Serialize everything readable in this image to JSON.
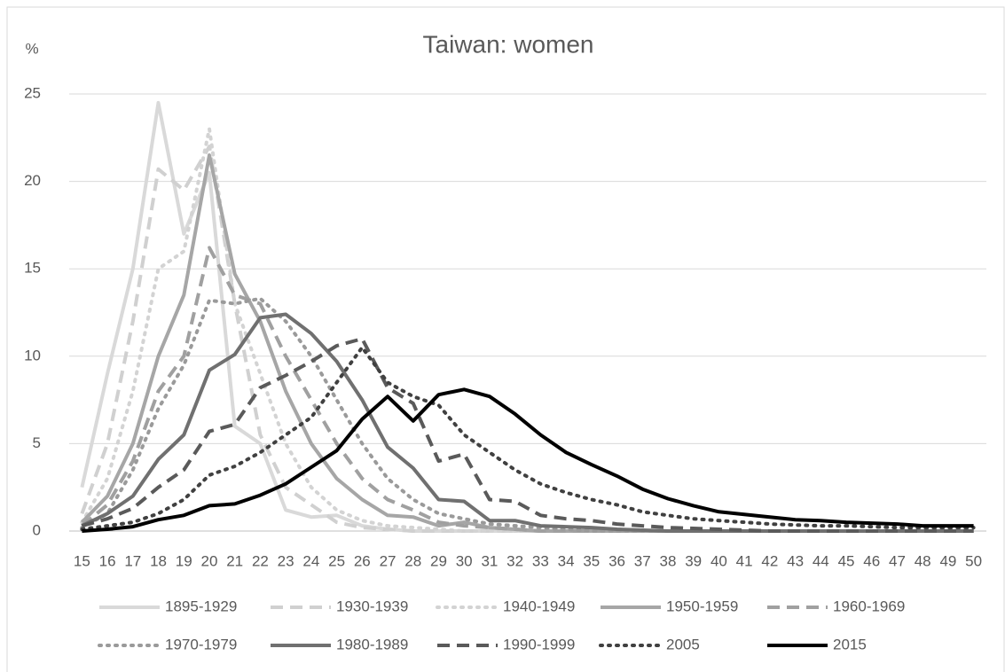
{
  "chart_data": {
    "type": "line",
    "title": "Taiwan: women",
    "y_label": "%",
    "categories": [
      "15",
      "16",
      "17",
      "18",
      "19",
      "20",
      "21",
      "22",
      "23",
      "24",
      "25",
      "26",
      "27",
      "28",
      "29",
      "30",
      "31",
      "32",
      "33",
      "34",
      "35",
      "36",
      "37",
      "38",
      "39",
      "40",
      "41",
      "42",
      "43",
      "44",
      "45",
      "46",
      "47",
      "48",
      "49",
      "50"
    ],
    "ylim": [
      0,
      25
    ],
    "yticks": [
      0,
      5,
      10,
      15,
      20,
      25
    ],
    "grid": true,
    "legend": "bottom",
    "series": [
      {
        "name": "1895-1929",
        "color": "#d9d9d9",
        "dash": "solid",
        "values": [
          2.5,
          9,
          15,
          24.5,
          17,
          20.5,
          6,
          5,
          1.2,
          0.8,
          0.9,
          0.3,
          0.1,
          0,
          0,
          0,
          0,
          0,
          0,
          0,
          0,
          0,
          0,
          0,
          0,
          0,
          0,
          0,
          0,
          0,
          0,
          0,
          0,
          0,
          0,
          0
        ]
      },
      {
        "name": "1930-1939",
        "color": "#d0d0d0",
        "dash": "dashed",
        "values": [
          1,
          5,
          12,
          20.7,
          19.5,
          22,
          13,
          5.5,
          2.5,
          1.5,
          0.5,
          0.2,
          0.1,
          0,
          0,
          0,
          0,
          0,
          0,
          0,
          0,
          0,
          0,
          0,
          0,
          0,
          0,
          0,
          0,
          0,
          0,
          0,
          0,
          0,
          0,
          0
        ]
      },
      {
        "name": "1940-1949",
        "color": "#d3d3d3",
        "dash": "dotted",
        "values": [
          0.5,
          3,
          8,
          15,
          16,
          23,
          13,
          9,
          5,
          2.5,
          1.2,
          0.6,
          0.3,
          0.2,
          0.1,
          0,
          0,
          0,
          0,
          0,
          0,
          0,
          0,
          0,
          0,
          0,
          0,
          0,
          0,
          0,
          0,
          0,
          0,
          0,
          0,
          0
        ]
      },
      {
        "name": "1950-1959",
        "color": "#a6a6a6",
        "dash": "solid",
        "values": [
          0.5,
          2,
          5,
          10,
          13.5,
          21.5,
          14.7,
          12,
          8,
          5,
          3,
          1.8,
          0.9,
          0.8,
          0.3,
          0.5,
          0.2,
          0.1,
          0,
          0,
          0,
          0,
          0,
          0,
          0,
          0,
          0,
          0,
          0,
          0,
          0,
          0,
          0,
          0,
          0,
          0
        ]
      },
      {
        "name": "1960-1969",
        "color": "#a0a0a0",
        "dash": "dashed",
        "values": [
          0.3,
          1.5,
          4,
          8,
          10,
          16.2,
          13.5,
          13,
          10,
          7.5,
          5,
          3,
          1.8,
          1.2,
          0.5,
          0.3,
          0.2,
          0.1,
          0,
          0,
          0,
          0,
          0,
          0,
          0,
          0,
          0,
          0,
          0,
          0,
          0,
          0,
          0,
          0,
          0,
          0
        ]
      },
      {
        "name": "1970-1979",
        "color": "#9a9a9a",
        "dash": "dotted",
        "values": [
          0.2,
          1,
          3.5,
          7,
          9.5,
          13.2,
          13,
          13.3,
          12,
          10,
          7.5,
          5,
          3,
          1.8,
          1,
          0.7,
          0.4,
          0.3,
          0.2,
          0.1,
          0,
          0,
          0,
          0,
          0,
          0,
          0,
          0,
          0,
          0,
          0,
          0,
          0,
          0,
          0,
          0
        ]
      },
      {
        "name": "1980-1989",
        "color": "#707070",
        "dash": "solid",
        "values": [
          0.3,
          1,
          2,
          4.1,
          5.5,
          9.2,
          10.1,
          12.2,
          12.4,
          11.3,
          9.7,
          7.5,
          4.8,
          3.6,
          1.8,
          1.7,
          0.6,
          0.6,
          0.3,
          0.25,
          0.2,
          0.1,
          0.05,
          0,
          0,
          0,
          0,
          0,
          0,
          0,
          0,
          0,
          0,
          0,
          0,
          0
        ]
      },
      {
        "name": "1990-1999",
        "color": "#5a5a5a",
        "dash": "dashed",
        "values": [
          0.3,
          0.7,
          1.3,
          2.5,
          3.5,
          5.7,
          6.1,
          8.2,
          8.9,
          9.7,
          10.6,
          11,
          8.2,
          7.3,
          4,
          4.4,
          1.8,
          1.7,
          0.9,
          0.7,
          0.6,
          0.4,
          0.3,
          0.2,
          0.15,
          0.1,
          0.05,
          0,
          0,
          0,
          0,
          0,
          0,
          0,
          0,
          0
        ]
      },
      {
        "name": "2005",
        "color": "#404040",
        "dash": "dotted",
        "values": [
          0.1,
          0.3,
          0.5,
          1,
          1.8,
          3.2,
          3.7,
          4.5,
          5.5,
          6.5,
          8.5,
          10.5,
          8.5,
          7.7,
          7.2,
          5.5,
          4.5,
          3.5,
          2.7,
          2.2,
          1.8,
          1.5,
          1.1,
          0.9,
          0.7,
          0.6,
          0.5,
          0.4,
          0.35,
          0.3,
          0.3,
          0.25,
          0.2,
          0.2,
          0.2,
          0.2
        ]
      },
      {
        "name": "2015",
        "color": "#000000",
        "dash": "solid",
        "values": [
          0,
          0.1,
          0.25,
          0.65,
          0.9,
          1.45,
          1.55,
          2.05,
          2.7,
          3.65,
          4.6,
          6.4,
          7.7,
          6.3,
          7.8,
          8.1,
          7.7,
          6.7,
          5.5,
          4.5,
          3.8,
          3.15,
          2.4,
          1.85,
          1.45,
          1.1,
          0.95,
          0.8,
          0.65,
          0.6,
          0.5,
          0.45,
          0.4,
          0.3,
          0.3,
          0.3
        ]
      }
    ]
  }
}
